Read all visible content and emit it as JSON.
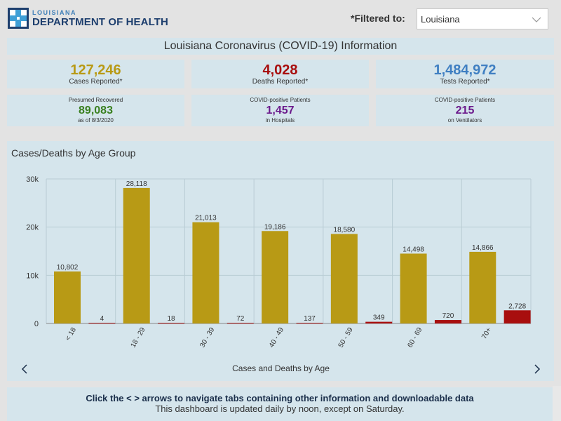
{
  "header": {
    "logo_top": "LOUISIANA",
    "logo_bottom": "DEPARTMENT OF HEALTH",
    "filter_label": "*Filtered to:",
    "filter_value": "Louisiana"
  },
  "title": "Louisiana Coronavirus (COVID-19) Information",
  "stats": {
    "cases": {
      "value": "127,246",
      "label": "Cases Reported*",
      "color": "#b89a15"
    },
    "deaths": {
      "value": "4,028",
      "label": "Deaths Reported*",
      "color": "#a80e0e"
    },
    "tests": {
      "value": "1,484,972",
      "label": "Tests Reported*",
      "color": "#3f7fc2"
    },
    "recovered": {
      "pre": "Presumed Recovered",
      "value": "89,083",
      "post": "as of 8/3/2020",
      "color": "#3a8020"
    },
    "hospitals": {
      "pre": "COVID-positive Patients",
      "value": "1,457",
      "post": "in Hospitals",
      "color": "#6c1a8c"
    },
    "ventilators": {
      "pre": "COVID-positive Patients",
      "value": "215",
      "post": "on Ventilators",
      "color": "#6c1a8c"
    }
  },
  "chart_data": {
    "type": "bar",
    "title": "Cases/Deaths by Age Group",
    "categories": [
      "< 18",
      "18 - 29",
      "30 - 39",
      "40 - 49",
      "50 - 59",
      "60 - 69",
      "70+"
    ],
    "series": [
      {
        "values": [
          10802,
          28118,
          21013,
          19186,
          18580,
          14498,
          14866
        ],
        "labels": [
          "10,802",
          "28,118",
          "21,013",
          "19,186",
          "18,580",
          "14,498",
          "14,866"
        ],
        "color": "#b89a15"
      },
      {
        "values": [
          4,
          18,
          72,
          137,
          349,
          720,
          2728
        ],
        "labels": [
          "4",
          "18",
          "72",
          "137",
          "349",
          "720",
          "2,728"
        ],
        "color": "#a80e0e"
      }
    ],
    "yticks": [
      0,
      10000,
      20000,
      30000
    ],
    "ytick_labels": [
      "0",
      "10k",
      "20k",
      "30k"
    ],
    "ylim": [
      0,
      30000
    ],
    "grid": true
  },
  "tabbar": {
    "label": "Cases and Deaths by Age"
  },
  "footer": {
    "line1": "Click the < > arrows to navigate tabs containing other information and downloadable data",
    "line2": "This dashboard is updated daily by noon, except on Saturday."
  }
}
